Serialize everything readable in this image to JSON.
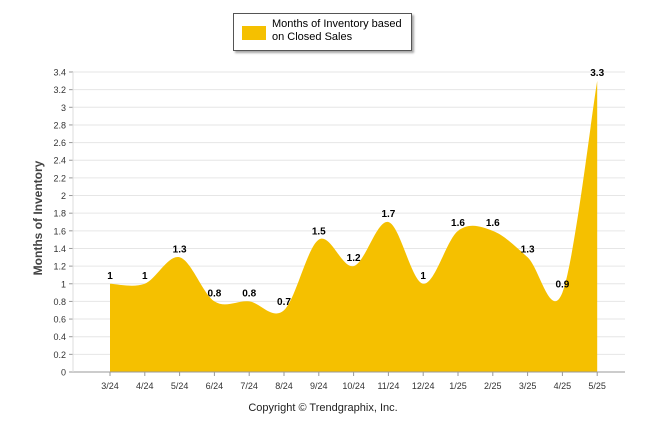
{
  "legend": {
    "label": "Months of Inventory based on Closed Sales",
    "color": "#F5C000"
  },
  "copyright": "Copyright © Trendgraphix, Inc.",
  "chart_data": {
    "type": "area",
    "title": "",
    "xlabel": "",
    "ylabel": "Months of Inventory",
    "ylim": [
      0,
      3.4
    ],
    "ytick_step": 0.2,
    "yticks": [
      "0",
      "0.2",
      "0.4",
      "0.6",
      "0.8",
      "1",
      "1.2",
      "1.4",
      "1.6",
      "1.8",
      "2",
      "2.2",
      "2.4",
      "2.6",
      "2.8",
      "3",
      "3.2",
      "3.4"
    ],
    "grid": true,
    "legend_position": "top-center",
    "categories": [
      "3/24",
      "4/24",
      "5/24",
      "6/24",
      "7/24",
      "8/24",
      "9/24",
      "10/24",
      "11/24",
      "12/24",
      "1/25",
      "2/25",
      "3/25",
      "4/25",
      "5/25"
    ],
    "series": [
      {
        "name": "Months of Inventory based on Closed Sales",
        "values": [
          1,
          1,
          1.3,
          0.8,
          0.8,
          0.7,
          1.5,
          1.2,
          1.7,
          1,
          1.6,
          1.6,
          1.3,
          0.9,
          3.3
        ],
        "data_labels": [
          "1",
          "1",
          "1.3",
          "0.8",
          "0.8",
          "0.7",
          "1.5",
          "1.2",
          "1.7",
          "1",
          "1.6",
          "1.6",
          "1.3",
          "0.9",
          "3.3"
        ]
      }
    ],
    "fill_color": "#F5C000"
  }
}
